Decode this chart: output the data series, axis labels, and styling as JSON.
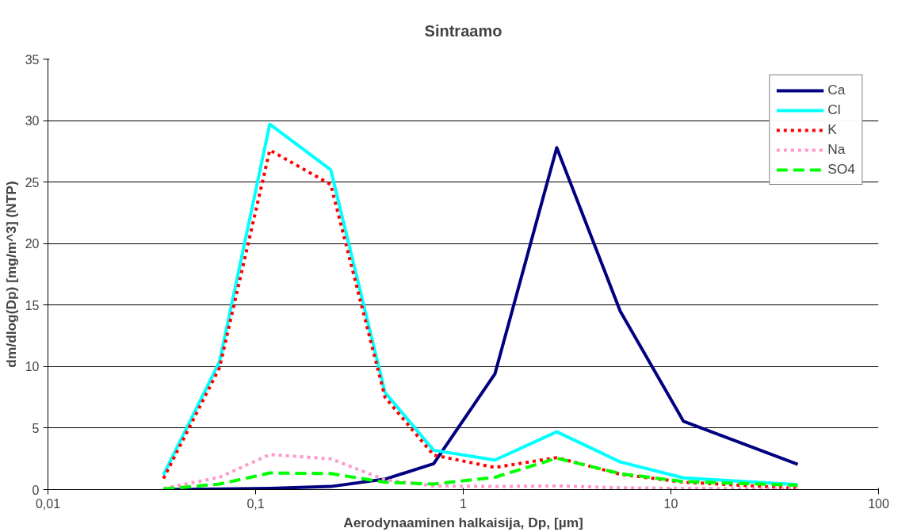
{
  "chart_data": {
    "type": "line",
    "title": "Sintraamo",
    "xlabel": "Aerodynaaminen halkaisija, Dp, [µm]",
    "ylabel": "dm/dlog(Dp) [mg/m^3] (NTP)",
    "log": "x",
    "xlim": [
      0.01,
      100
    ],
    "xticks": [
      {
        "value": 0.01,
        "label": "0,01"
      },
      {
        "value": 0.1,
        "label": "0,1"
      },
      {
        "value": 1,
        "label": "1"
      },
      {
        "value": 10,
        "label": "10"
      },
      {
        "value": 100,
        "label": "100"
      }
    ],
    "ylim": [
      0,
      35
    ],
    "yticks": [
      0,
      5,
      10,
      15,
      20,
      25,
      30,
      35
    ],
    "grid": "y",
    "legend": "top right",
    "marker": "none",
    "x": [
      0.036,
      0.067,
      0.117,
      0.23,
      0.42,
      0.72,
      1.42,
      2.82,
      5.7,
      11.5,
      40.8
    ],
    "series": [
      {
        "name": "Ca",
        "color": "#000080",
        "line_style": "solid",
        "values": [
          0,
          0.05,
          0.1,
          0.25,
          0.85,
          2.1,
          9.4,
          27.8,
          14.5,
          5.55,
          2.05
        ]
      },
      {
        "name": "Cl",
        "color": "#00ffff",
        "line_style": "solid",
        "values": [
          1.2,
          10.4,
          29.7,
          26.0,
          7.9,
          3.2,
          2.4,
          4.7,
          2.25,
          0.95,
          0.4
        ]
      },
      {
        "name": "K",
        "color": "#ff0000",
        "line_style": "dotted",
        "values": [
          0.9,
          9.9,
          27.6,
          24.8,
          7.5,
          2.8,
          1.8,
          2.6,
          1.25,
          0.6,
          0.1
        ]
      },
      {
        "name": "Na",
        "color": "#ff99cc",
        "line_style": "dotted",
        "values": [
          0.1,
          1.0,
          2.85,
          2.5,
          0.8,
          0.3,
          0.25,
          0.3,
          0.15,
          0.1,
          0.05
        ]
      },
      {
        "name": "SO4",
        "color": "#00ff00",
        "line_style": "dashed",
        "values": [
          0.05,
          0.45,
          1.35,
          1.3,
          0.6,
          0.45,
          1.0,
          2.55,
          1.3,
          0.65,
          0.35
        ]
      }
    ]
  }
}
